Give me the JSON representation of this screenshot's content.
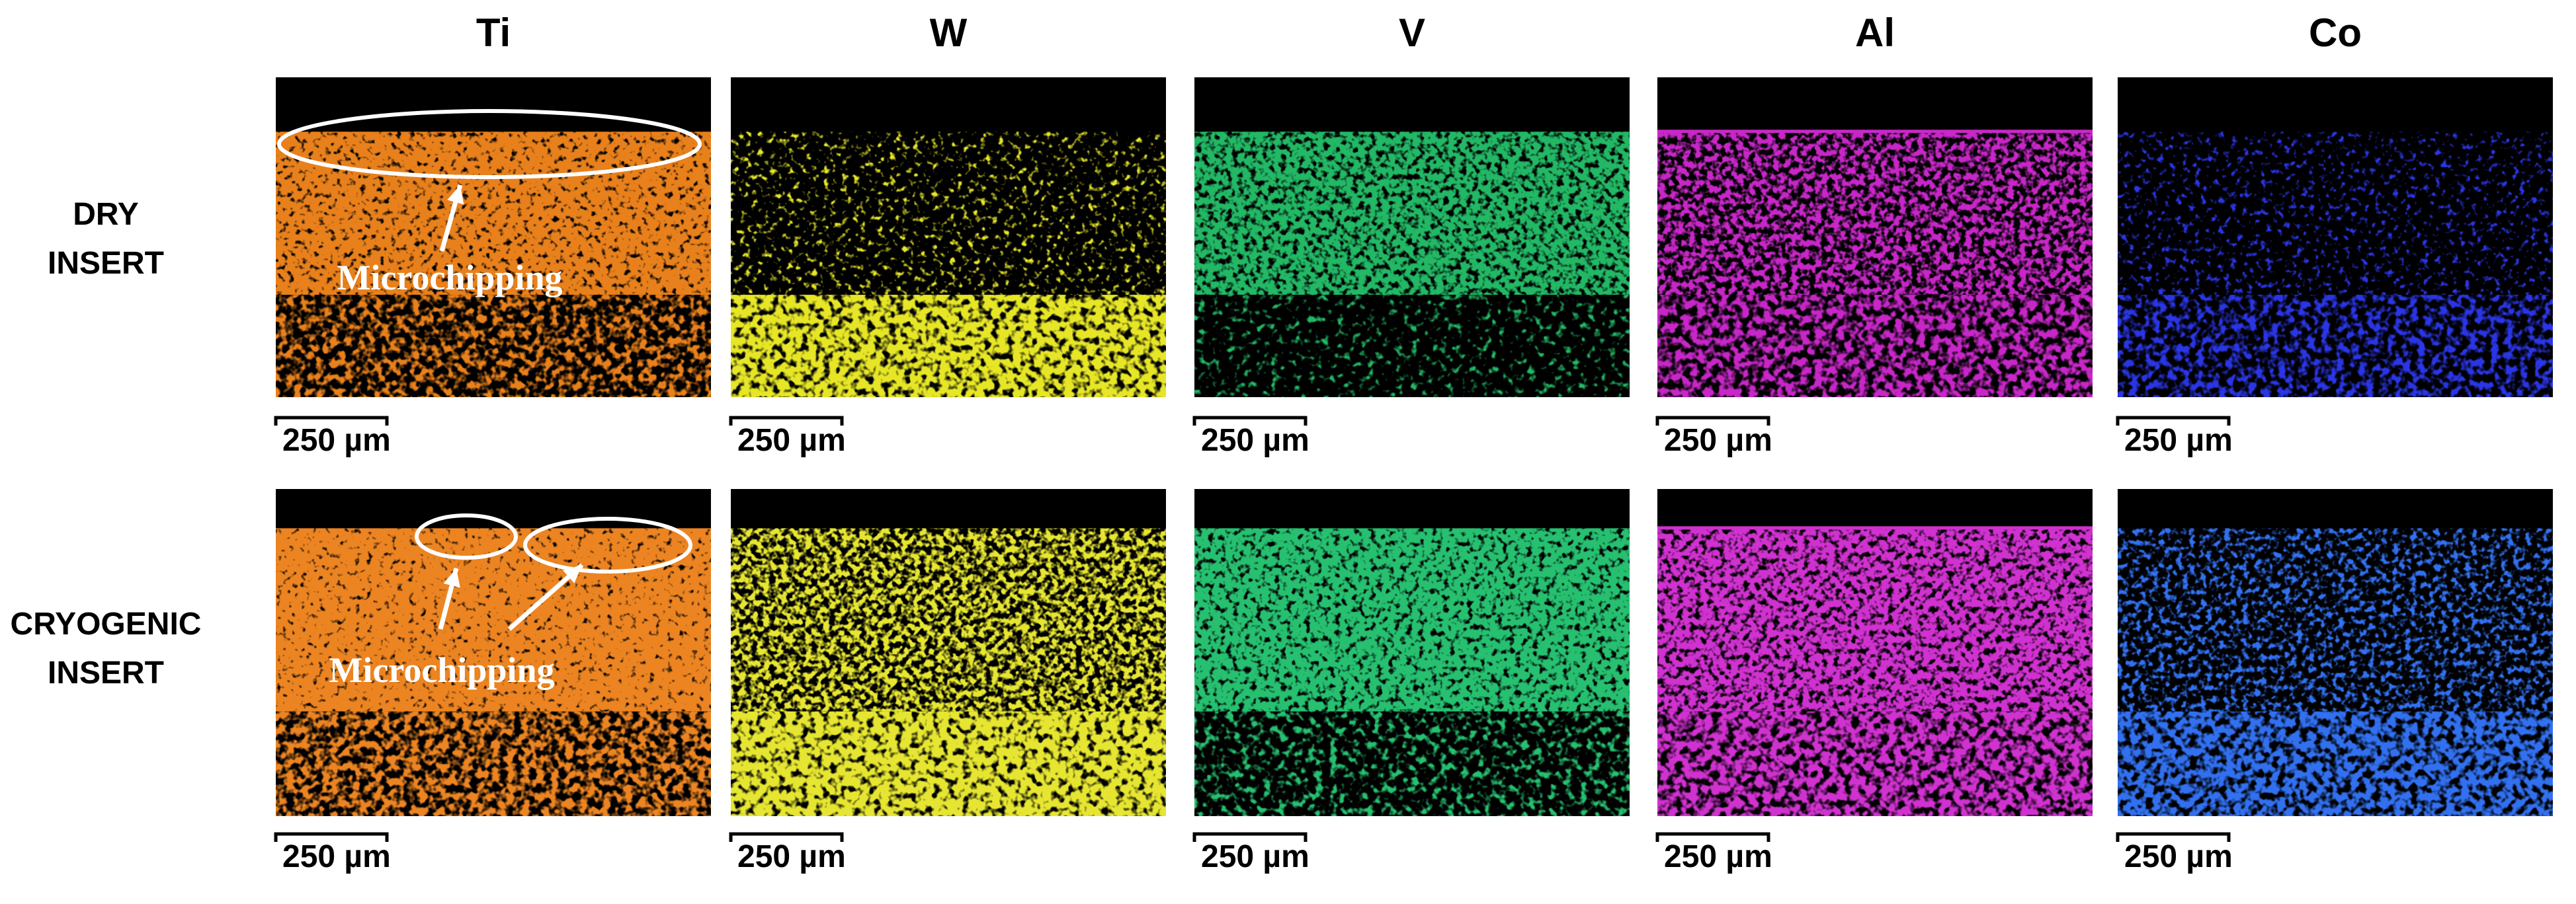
{
  "columns": [
    "Ti",
    "W",
    "V",
    "Al",
    "Co"
  ],
  "rows": [
    {
      "label": [
        "DRY",
        "INSERT"
      ],
      "annotation": "Microchipping",
      "scale_bars": [
        "250 µm",
        "250 µm",
        "250 µm",
        "250 µm",
        "250 µm"
      ]
    },
    {
      "label": [
        "CRYOGENIC",
        "INSERT"
      ],
      "annotation": "Microchipping",
      "scale_bars": [
        "250 µm",
        "250 µm",
        "250 µm",
        "250 µm",
        "250 µm"
      ]
    }
  ]
}
